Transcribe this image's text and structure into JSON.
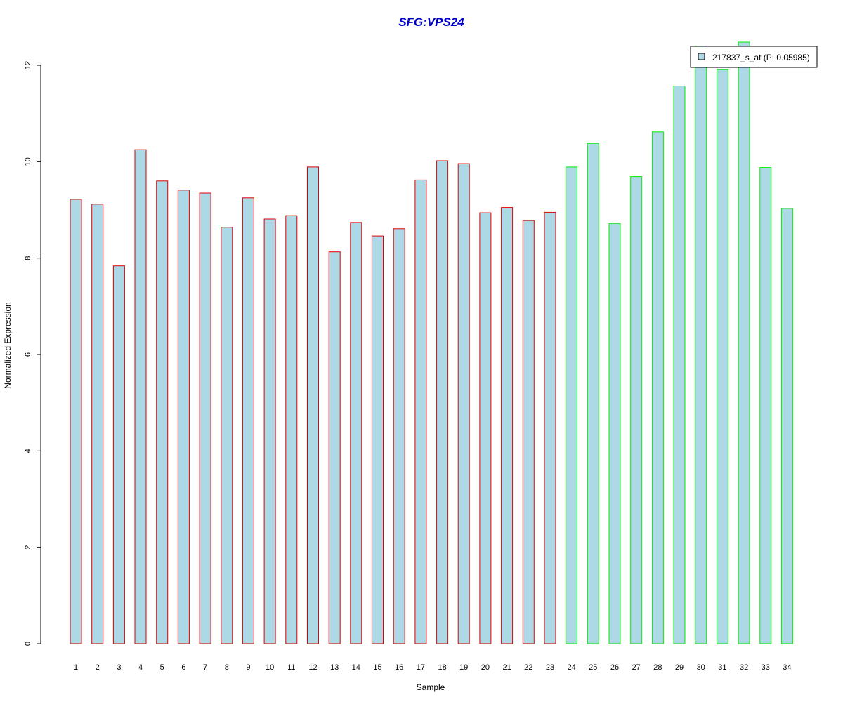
{
  "colors": {
    "bar_fill": "#add8e6",
    "group1_stroke": "#e00000",
    "group2_stroke": "#00ee00",
    "title": "#0000cc",
    "axis": "#000000"
  },
  "chart_data": {
    "type": "bar",
    "title": "SFG:VPS24",
    "xlabel": "Sample",
    "ylabel": "Normalized Expression",
    "ylim": [
      0,
      12
    ],
    "y_ticks": [
      "0",
      "2",
      "4",
      "6",
      "8",
      "10",
      "12"
    ],
    "categories": [
      "1",
      "2",
      "3",
      "4",
      "5",
      "6",
      "7",
      "8",
      "9",
      "10",
      "11",
      "12",
      "13",
      "14",
      "15",
      "16",
      "17",
      "18",
      "19",
      "20",
      "21",
      "22",
      "23",
      "24",
      "25",
      "26",
      "27",
      "28",
      "29",
      "30",
      "31",
      "32",
      "33",
      "34"
    ],
    "series": [
      {
        "name": "217837_s_at (P: 0.05985)",
        "values": [
          9.22,
          9.12,
          7.84,
          10.25,
          9.6,
          9.41,
          9.35,
          8.64,
          9.25,
          8.81,
          8.88,
          9.89,
          8.13,
          8.74,
          8.46,
          8.61,
          9.62,
          10.02,
          9.96,
          8.94,
          9.05,
          8.78,
          8.95,
          9.89,
          10.38,
          8.72,
          9.69,
          10.62,
          11.57,
          12.4,
          11.91,
          12.48,
          9.88,
          9.03
        ]
      }
    ],
    "groups": [
      1,
      1,
      1,
      1,
      1,
      1,
      1,
      1,
      1,
      1,
      1,
      1,
      1,
      1,
      1,
      1,
      1,
      1,
      1,
      1,
      1,
      1,
      1,
      2,
      2,
      2,
      2,
      2,
      2,
      2,
      2,
      2,
      2,
      2
    ],
    "legend": {
      "position": "top-right",
      "label": "217837_s_at (P: 0.05985)"
    },
    "grid": false
  }
}
